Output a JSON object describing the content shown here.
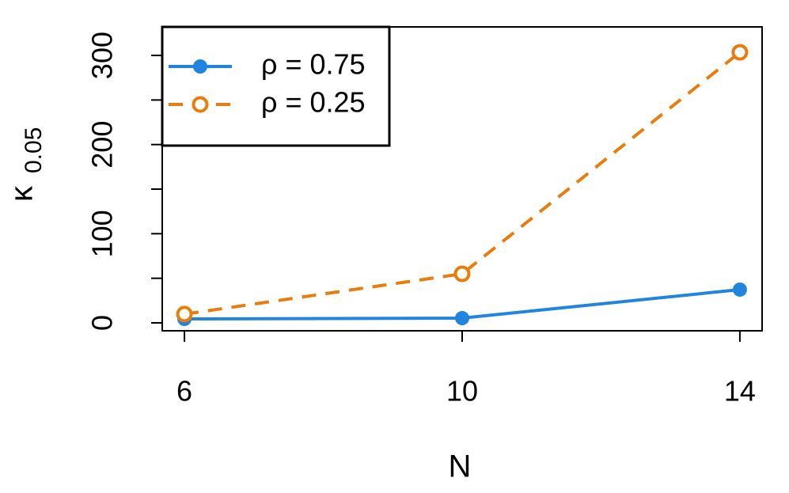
{
  "chart_data": {
    "type": "line",
    "xlabel": "N",
    "ylabel": "κ",
    "ylabel_subscript": "0.05",
    "x": [
      6,
      10,
      14
    ],
    "series": [
      {
        "name": "ρ = 0.75",
        "color": "#2185e0",
        "dash": false,
        "marker": "filled",
        "values": [
          4.4,
          5.3,
          37.3
        ]
      },
      {
        "name": "ρ = 0.25",
        "color": "#e87d0e",
        "dash": true,
        "marker": "open",
        "values": [
          9.8,
          55,
          303.5
        ]
      }
    ],
    "xlim": [
      5.68,
      14.32
    ],
    "xticks": [
      6,
      10,
      14
    ],
    "ylim": [
      -8.9,
      332
    ],
    "yticks": [
      0,
      100,
      200,
      300
    ],
    "yminor_ticks": [
      50,
      150,
      250
    ],
    "legend": "top-left"
  }
}
